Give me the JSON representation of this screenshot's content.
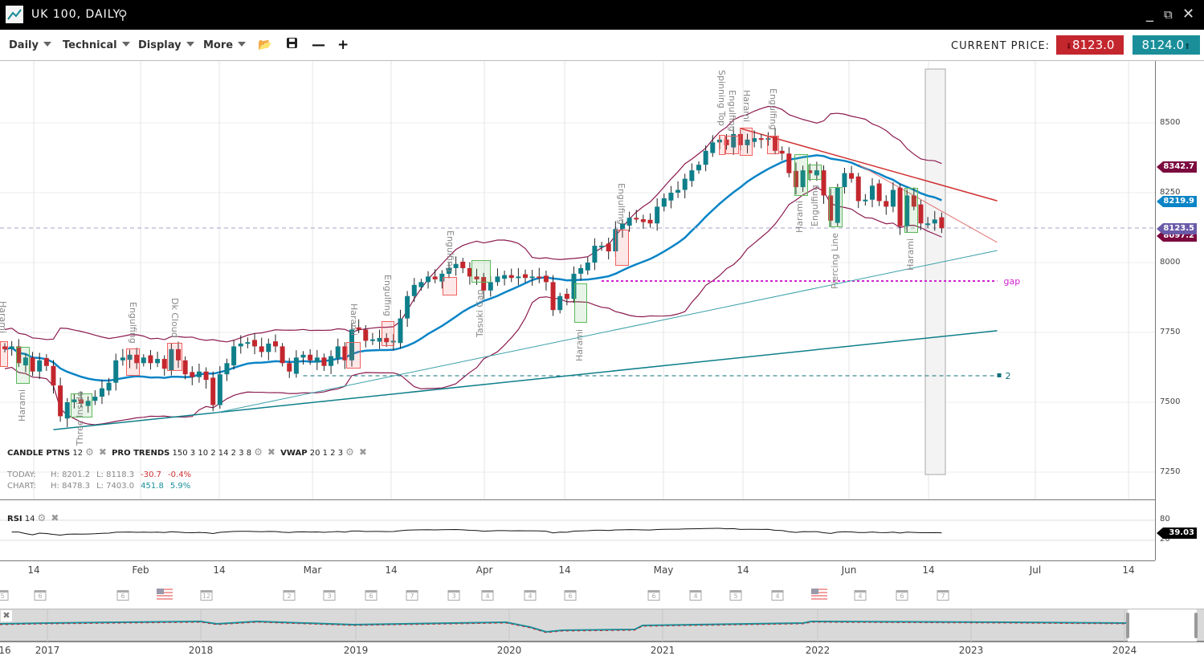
{
  "window": {
    "title": "UK 100, DAILY",
    "icons": [
      "chart-logo-icon",
      "search-icon",
      "minimize-icon",
      "popout-icon",
      "close-icon"
    ]
  },
  "toolbar": {
    "menus": [
      "Daily",
      "Technical",
      "Display",
      "More"
    ],
    "icons": [
      "folder-open-icon",
      "save-icon",
      "zoom-out-icon",
      "zoom-in-icon"
    ],
    "current_price_label": "CURRENT PRICE:",
    "bid": "8123.0",
    "ask": "8124.0",
    "bid_color": "#c4262e",
    "ask_color": "#1a8f9a"
  },
  "indicators": {
    "candle": {
      "name": "CANDLE PTNS",
      "params": "12"
    },
    "trends": {
      "name": "PRO TRENDS",
      "params": "150 3 10 2 14 2 3 8"
    },
    "vwap": {
      "name": "VWAP",
      "params": "20 1 2 3"
    },
    "rsi": {
      "name": "RSI",
      "params": "14"
    }
  },
  "stats": {
    "today": {
      "label": "TODAY:",
      "high": "H: 8201.2",
      "low": "L: 8118.3",
      "change": "-30.7",
      "pct": "-0.4%"
    },
    "chart": {
      "label": "CHART:",
      "high": "H: 8478.3",
      "low": "L: 7403.0",
      "change": "451.8",
      "pct": "5.9%"
    }
  },
  "chart_data": {
    "type": "candlestick",
    "y_ticks": [
      "8500",
      "8250",
      "8000",
      "7750",
      "7500",
      "7250"
    ],
    "ylim": [
      7150,
      8690
    ],
    "rsi_ticks": [
      "80",
      "20"
    ],
    "rsi_value": "39.03",
    "x_ticks": [
      "14",
      "Feb",
      "14",
      "Mar",
      "14",
      "Apr",
      "14",
      "May",
      "14",
      "Jun",
      "14",
      "Jul",
      "14"
    ],
    "closes": [
      7690,
      7700,
      7640,
      7660,
      7610,
      7650,
      7630,
      7560,
      7450,
      7500,
      7510,
      7495,
      7505,
      7520,
      7550,
      7570,
      7650,
      7660,
      7670,
      7640,
      7660,
      7640,
      7655,
      7620,
      7690,
      7650,
      7600,
      7590,
      7610,
      7580,
      7490,
      7600,
      7640,
      7700,
      7710,
      7715,
      7700,
      7680,
      7710,
      7700,
      7640,
      7610,
      7660,
      7670,
      7650,
      7660,
      7630,
      7665,
      7700,
      7650,
      7760,
      7760,
      7720,
      7725,
      7730,
      7715,
      7720,
      7800,
      7880,
      7920,
      7930,
      7950,
      7940,
      7960,
      7980,
      7995,
      7980,
      7950,
      7940,
      7900,
      7930,
      7950,
      7955,
      7945,
      7950,
      7945,
      7950,
      7945,
      7930,
      7830,
      7880,
      7870,
      7960,
      7980,
      8000,
      8060,
      8060,
      8040,
      8120,
      8140,
      8160,
      8155,
      8145,
      8140,
      8200,
      8230,
      8250,
      8260,
      8300,
      8330,
      8350,
      8400,
      8430,
      8440,
      8420,
      8460,
      8420,
      8440,
      8445,
      8440,
      8445,
      8400,
      8390,
      8320,
      8270,
      8330,
      8320,
      8330,
      8240,
      8150,
      8270,
      8320,
      8300,
      8220,
      8225,
      8275,
      8220,
      8200,
      8260,
      8130,
      8240,
      8200,
      8140,
      8140,
      8154,
      8123
    ],
    "price_tags": [
      {
        "value": "8342.7",
        "color": "#7b0a3f"
      },
      {
        "value": "8219.9",
        "color": "#0a84c6"
      },
      {
        "value": "8097.2",
        "color": "#7b0a3f"
      },
      {
        "value": "8123.5",
        "color": "#6a5aa8"
      }
    ],
    "trendlines": [
      {
        "from": [
          106,
          8480
        ],
        "to": [
          143,
          8221
        ],
        "color": "#d03030",
        "width": 1.5
      },
      {
        "from": [
          123,
          8351
        ],
        "to": [
          143,
          8072
        ],
        "color": "#e07070",
        "width": 1
      },
      {
        "from": [
          7,
          7402
        ],
        "to": [
          143,
          7756
        ],
        "color": "#0e7f8a",
        "width": 1.5
      },
      {
        "from": [
          30,
          7460
        ],
        "to": [
          143,
          8043
        ],
        "color": "#3aa0a8",
        "width": 1
      }
    ],
    "levels": [
      {
        "price": 8123.5,
        "color": "#a9a0cc",
        "label": ""
      },
      {
        "price": 7934,
        "color": "#d020d0",
        "label": "gap",
        "from": 86
      },
      {
        "price": 7595,
        "color": "#0e6f7a",
        "label": "2",
        "from": 43
      }
    ],
    "patterns": [
      {
        "label": "Harami",
        "kind": "bear"
      },
      {
        "label": "Harami",
        "kind": "bull"
      },
      {
        "label": "Three Inside",
        "kind": "bull"
      },
      {
        "label": "Engulfing",
        "kind": "bear"
      },
      {
        "label": "Dk Cloud",
        "kind": "bear"
      },
      {
        "label": "Harami",
        "kind": "bear"
      },
      {
        "label": "Engulfing",
        "kind": "bear"
      },
      {
        "label": "Engulfing",
        "kind": "bear"
      },
      {
        "label": "Tasuki Gap",
        "kind": "bull"
      },
      {
        "label": "Harami",
        "kind": "bull"
      },
      {
        "label": "Engulfing",
        "kind": "bear"
      },
      {
        "label": "Spinning Top",
        "kind": "bear"
      },
      {
        "label": "Engulfing",
        "kind": "bear"
      },
      {
        "label": "Harami",
        "kind": "bear"
      },
      {
        "label": "Engulfing",
        "kind": "bear"
      },
      {
        "label": "Harami",
        "kind": "bull"
      },
      {
        "label": "Engulfing",
        "kind": "bull"
      },
      {
        "label": "Piercing Line",
        "kind": "bull"
      },
      {
        "label": "Harami",
        "kind": "bull"
      }
    ],
    "colors": {
      "up": "#0e7f8a",
      "down": "#c4262e",
      "ma": "#0a84c6",
      "bands": "#8b1a4f"
    }
  },
  "events": [
    "5",
    "6",
    "6",
    "flag",
    "12",
    "2",
    "3",
    "6",
    "7",
    "3",
    "4",
    "4",
    "6",
    "6",
    "4",
    "5",
    "4",
    "flag",
    "4",
    "6",
    "7"
  ],
  "navigator": {
    "years": [
      "16",
      "2017",
      "2018",
      "2019",
      "2020",
      "2021",
      "2022",
      "2023",
      "2024"
    ]
  }
}
